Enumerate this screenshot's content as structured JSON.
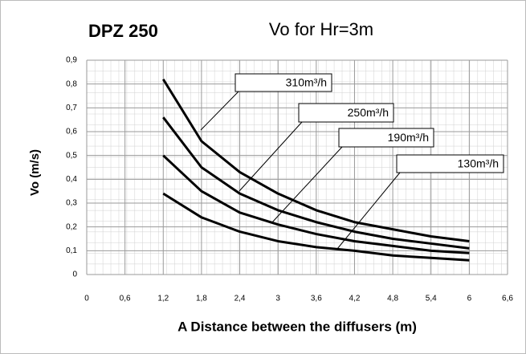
{
  "chart_data": {
    "type": "line",
    "heading": "DPZ 250",
    "title": "Vo for Hr=3m",
    "x_label": "A Distance between the diffusers (m)",
    "y_label": "Vo (m/s)",
    "x": [
      1.2,
      1.8,
      2.4,
      3,
      3.6,
      4.2,
      4.8,
      5.4,
      6
    ],
    "series": [
      {
        "name": "310m³/h",
        "color": "#000000",
        "values": [
          0.82,
          0.56,
          0.43,
          0.34,
          0.27,
          0.22,
          0.19,
          0.16,
          0.14
        ]
      },
      {
        "name": "250m³/h",
        "color": "#000000",
        "values": [
          0.66,
          0.45,
          0.34,
          0.27,
          0.22,
          0.18,
          0.15,
          0.13,
          0.11
        ]
      },
      {
        "name": "190m³/h",
        "color": "#000000",
        "values": [
          0.5,
          0.35,
          0.26,
          0.21,
          0.17,
          0.14,
          0.12,
          0.1,
          0.09
        ]
      },
      {
        "name": "130m³/h",
        "color": "#000000",
        "values": [
          0.34,
          0.24,
          0.18,
          0.14,
          0.115,
          0.1,
          0.08,
          0.07,
          0.06
        ]
      }
    ],
    "xlim": [
      0,
      6.6
    ],
    "xticks": [
      0,
      {
        "value": 0.6,
        "label": "0,6"
      },
      {
        "value": 1.2,
        "label": "1,2"
      },
      {
        "value": 1.8,
        "label": "1,8"
      },
      {
        "value": 2.4,
        "label": "2,4"
      },
      3,
      {
        "value": 3.6,
        "label": "3,6"
      },
      {
        "value": 4.2,
        "label": "4,2"
      },
      {
        "value": 4.8,
        "label": "4,8"
      },
      {
        "value": 5.4,
        "label": "5,4"
      },
      6,
      {
        "value": 6.6,
        "label": "6,6"
      }
    ],
    "ylim": [
      0,
      0.9
    ],
    "yticks": [
      0,
      {
        "value": 0.1,
        "label": "0,1"
      },
      {
        "value": 0.2,
        "label": "0,2"
      },
      {
        "value": 0.3,
        "label": "0,3"
      },
      {
        "value": 0.4,
        "label": "0,4"
      },
      {
        "value": 0.5,
        "label": "0,5"
      },
      {
        "value": 0.6,
        "label": "0,6"
      },
      {
        "value": 0.7,
        "label": "0,7"
      },
      {
        "value": 0.8,
        "label": "0,8"
      },
      {
        "value": 0.9,
        "label": "0,9"
      }
    ],
    "grid": true
  }
}
